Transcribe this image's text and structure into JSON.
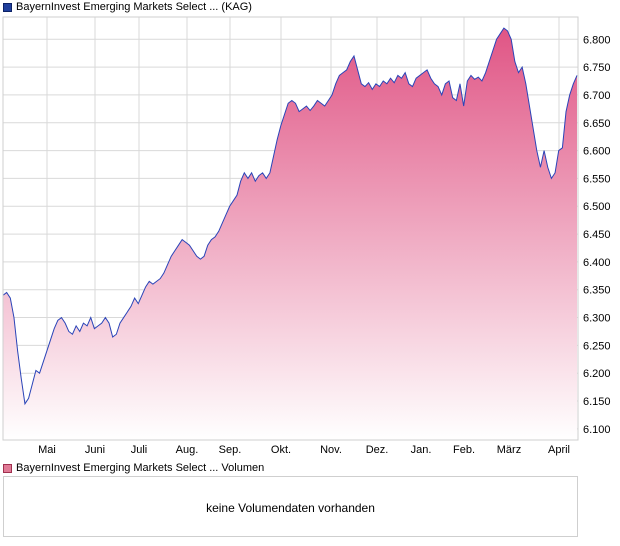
{
  "legend": {
    "price_label": "BayernInvest Emerging Markets Select ... (KAG)",
    "volume_label": "BayernInvest Emerging Markets Select ... Volumen"
  },
  "volume": {
    "message": "keine Volumendaten vorhanden"
  },
  "colors": {
    "line": "#2a44b8",
    "fill_top": "#e05585",
    "fill_bottom": "#ffffff",
    "grid": "#d9d9d9",
    "frame": "#cfcfcf"
  },
  "chart_data": {
    "type": "area",
    "title": "",
    "xlabel": "",
    "ylabel": "",
    "ylim": [
      6.08,
      6.84
    ],
    "yticks": [
      "6.100",
      "6.150",
      "6.200",
      "6.250",
      "6.300",
      "6.350",
      "6.400",
      "6.450",
      "6.500",
      "6.550",
      "6.600",
      "6.650",
      "6.700",
      "6.750",
      "6.800"
    ],
    "ytick_values": [
      6.1,
      6.15,
      6.2,
      6.25,
      6.3,
      6.35,
      6.4,
      6.45,
      6.5,
      6.55,
      6.6,
      6.65,
      6.7,
      6.75,
      6.8
    ],
    "xticks": [
      "Mai",
      "Juni",
      "Juli",
      "Aug.",
      "Sep.",
      "Okt.",
      "Nov.",
      "Dez.",
      "Jan.",
      "Feb.",
      "März",
      "April"
    ],
    "grid": true,
    "legend": "top-left",
    "series": [
      {
        "name": "BayernInvest Emerging Markets Select ... (KAG)",
        "values": [
          6.34,
          6.345,
          6.335,
          6.3,
          6.24,
          6.19,
          6.145,
          6.155,
          6.18,
          6.205,
          6.2,
          6.22,
          6.24,
          6.26,
          6.28,
          6.295,
          6.3,
          6.29,
          6.275,
          6.27,
          6.285,
          6.275,
          6.29,
          6.285,
          6.3,
          6.28,
          6.285,
          6.29,
          6.3,
          6.29,
          6.265,
          6.27,
          6.29,
          6.3,
          6.31,
          6.32,
          6.335,
          6.325,
          6.34,
          6.355,
          6.365,
          6.36,
          6.365,
          6.37,
          6.38,
          6.395,
          6.41,
          6.42,
          6.43,
          6.44,
          6.435,
          6.43,
          6.42,
          6.41,
          6.405,
          6.41,
          6.43,
          6.44,
          6.445,
          6.455,
          6.47,
          6.485,
          6.5,
          6.51,
          6.52,
          6.545,
          6.56,
          6.55,
          6.56,
          6.545,
          6.555,
          6.56,
          6.55,
          6.56,
          6.59,
          6.62,
          6.645,
          6.665,
          6.685,
          6.69,
          6.685,
          6.67,
          6.675,
          6.68,
          6.672,
          6.68,
          6.69,
          6.685,
          6.68,
          6.69,
          6.7,
          6.72,
          6.735,
          6.74,
          6.745,
          6.76,
          6.77,
          6.745,
          6.72,
          6.715,
          6.722,
          6.71,
          6.72,
          6.715,
          6.725,
          6.72,
          6.73,
          6.722,
          6.735,
          6.73,
          6.74,
          6.72,
          6.715,
          6.73,
          6.735,
          6.74,
          6.745,
          6.73,
          6.72,
          6.715,
          6.7,
          6.72,
          6.725,
          6.695,
          6.69,
          6.72,
          6.68,
          6.725,
          6.735,
          6.728,
          6.732,
          6.725,
          6.74,
          6.76,
          6.78,
          6.8,
          6.81,
          6.82,
          6.815,
          6.8,
          6.76,
          6.74,
          6.75,
          6.72,
          6.68,
          6.64,
          6.6,
          6.57,
          6.6,
          6.57,
          6.55,
          6.56,
          6.6,
          6.605,
          6.67,
          6.7,
          6.72,
          6.735
        ]
      }
    ]
  }
}
